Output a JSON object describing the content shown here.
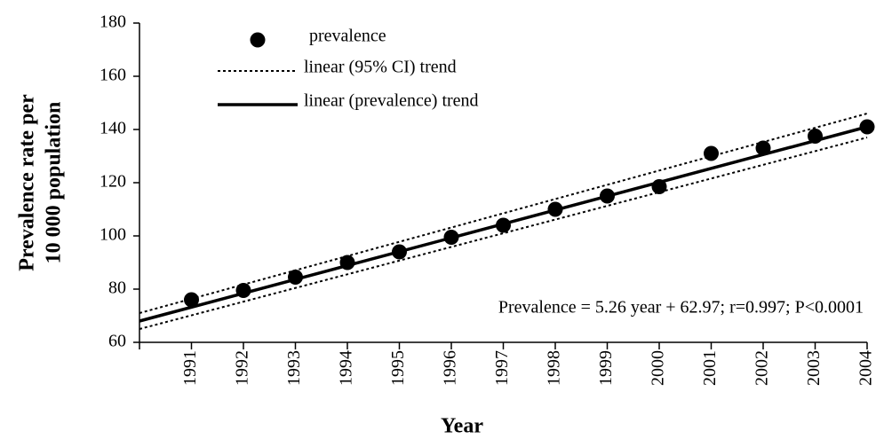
{
  "chart_data": {
    "type": "scatter",
    "x_label": "Year",
    "y_label": [
      "Prevalence rate per",
      "10 000  population"
    ],
    "annotation": "Prevalence = 5.26 year + 62.97; r=0.997; P<0.0001",
    "xlim": [
      1990,
      2004
    ],
    "xticks": [
      1991,
      1992,
      1993,
      1994,
      1995,
      1996,
      1997,
      1998,
      1999,
      2000,
      2001,
      2002,
      2003,
      2004
    ],
    "ylim": [
      60,
      180
    ],
    "yticks": [
      60,
      80,
      100,
      120,
      140,
      160,
      180
    ],
    "legend": "top-left",
    "series": [
      {
        "name": "prevalence",
        "color": "#000000",
        "style": "marker",
        "x": [
          1991,
          1992,
          1993,
          1994,
          1995,
          1996,
          1997,
          1998,
          1999,
          2000,
          2001,
          2002,
          2003,
          2004
        ],
        "values": [
          76,
          79.5,
          84.5,
          90,
          94,
          99.5,
          104,
          110,
          115,
          118.5,
          131,
          133,
          137.5,
          141
        ]
      },
      {
        "name": "linear (95% CI) trend",
        "color": "#000000",
        "style": "dotted",
        "x": [
          1990,
          2004
        ],
        "upper": [
          71,
          146
        ],
        "lower": [
          65,
          137
        ]
      },
      {
        "name": "linear (prevalence) trend",
        "color": "#000000",
        "style": "solid",
        "x": [
          1990,
          2004
        ],
        "values": [
          68,
          141
        ]
      }
    ]
  }
}
